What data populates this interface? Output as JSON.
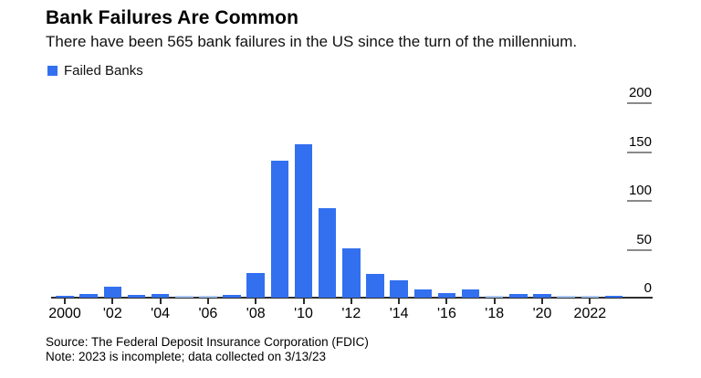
{
  "header": {
    "title": "Bank Failures Are Common",
    "subtitle": "There have been 565 bank failures in the US since the turn of the millennium."
  },
  "legend": {
    "label": "Failed Banks",
    "swatch_color": "#3270EF"
  },
  "footer": {
    "source": "Source: The Federal Deposit Insurance Corporation (FDIC)",
    "note": "Note: 2023 is incomplete; data collected on 3/13/23"
  },
  "chart_data": {
    "type": "bar",
    "title": "Bank Failures Are Common",
    "subtitle": "There have been 565 bank failures in the US since the turn of the millennium.",
    "series_name": "Failed Banks",
    "years": [
      2000,
      2001,
      2002,
      2003,
      2004,
      2005,
      2006,
      2007,
      2008,
      2009,
      2010,
      2011,
      2012,
      2013,
      2014,
      2015,
      2016,
      2017,
      2018,
      2019,
      2020,
      2021,
      2022,
      2023
    ],
    "values": [
      2,
      4,
      11,
      3,
      4,
      0,
      0,
      3,
      25,
      140,
      157,
      92,
      51,
      24,
      18,
      8,
      5,
      8,
      0,
      4,
      4,
      0,
      0,
      2
    ],
    "total": 565,
    "x_ticks": [
      {
        "year": 2000,
        "label": "2000"
      },
      {
        "year": 2002,
        "label": "'02"
      },
      {
        "year": 2004,
        "label": "'04"
      },
      {
        "year": 2006,
        "label": "'06"
      },
      {
        "year": 2008,
        "label": "'08"
      },
      {
        "year": 2010,
        "label": "'10"
      },
      {
        "year": 2012,
        "label": "'12"
      },
      {
        "year": 2014,
        "label": "'14"
      },
      {
        "year": 2016,
        "label": "'16"
      },
      {
        "year": 2018,
        "label": "'18"
      },
      {
        "year": 2020,
        "label": "'20"
      },
      {
        "year": 2022,
        "label": "2022"
      }
    ],
    "y_ticks": [
      0,
      50,
      100,
      150,
      200
    ],
    "ylim": [
      0,
      200
    ],
    "yaxis_side": "right",
    "legend_position": "top-left",
    "grid": "off",
    "bar_color": "#3270EF",
    "zero_bar_color": "#ACC9F8"
  }
}
